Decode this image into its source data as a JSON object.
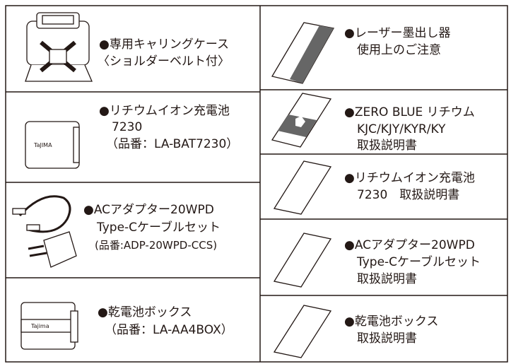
{
  "left": [
    {
      "lines": [
        "●専用キャリングケース",
        "〈ショルダーベルト付〉"
      ]
    },
    {
      "lines": [
        "●リチウムイオン充電池",
        "7230",
        "（品番：LA-BAT7230）"
      ]
    },
    {
      "lines": [
        "●ACアダプター20WPD",
        "Type-Cケーブルセット",
        "(品番:ADP-20WPD-CCS)"
      ]
    },
    {
      "lines": [
        "●乾電池ボックス",
        "（品番：LA-AA4BOX）"
      ]
    }
  ],
  "right": [
    {
      "lines": [
        "●レーザー墨出し器",
        "使用上のご注意"
      ]
    },
    {
      "lines": [
        "●ZERO BLUE リチウム",
        "KJC/KJY/KYR/KY",
        "取扱説明書"
      ]
    },
    {
      "lines": [
        "●リチウムイオン充電池",
        "7230　取扱説明書"
      ]
    },
    {
      "lines": [
        "●ACアダプター20WPD",
        "Type-Cケーブルセット",
        "取扱説明書"
      ]
    },
    {
      "lines": [
        "●乾電池ボックス",
        "取扱説明書"
      ]
    }
  ]
}
